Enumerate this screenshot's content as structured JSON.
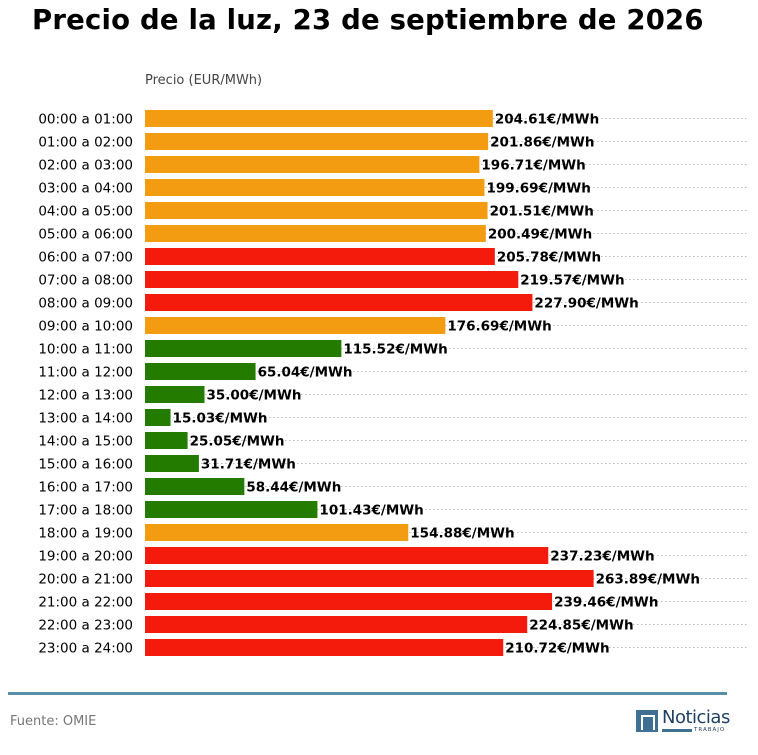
{
  "title": "Precio de la luz, 23 de septiembre de 2026",
  "unit_label": "Precio (EUR/MWh)",
  "source": "Fuente: OMIE",
  "logo": {
    "word": "Noticias",
    "sub": "TRABAJO"
  },
  "colors": {
    "high": "#f41a0c",
    "medium": "#f39c12",
    "low": "#237b00",
    "gridline": "#bbbbbb",
    "footer_rule": "#5a8ea6"
  },
  "value_suffix": "€/MWh",
  "chart_data": {
    "type": "bar",
    "orientation": "horizontal",
    "title": "Precio de la luz, 23 de septiembre de 2026",
    "xlabel": "Precio (EUR/MWh)",
    "ylabel": "",
    "xlim": [
      0,
      270
    ],
    "grid": "dotted horizontal guide lines",
    "categories": [
      "00:00 a 01:00",
      "01:00 a 02:00",
      "02:00 a 03:00",
      "03:00 a 04:00",
      "04:00 a 05:00",
      "05:00 a 06:00",
      "06:00 a 07:00",
      "07:00 a 08:00",
      "08:00 a 09:00",
      "09:00 a 10:00",
      "10:00 a 11:00",
      "11:00 a 12:00",
      "12:00 a 13:00",
      "13:00 a 14:00",
      "14:00 a 15:00",
      "15:00 a 16:00",
      "16:00 a 17:00",
      "17:00 a 18:00",
      "18:00 a 19:00",
      "19:00 a 20:00",
      "20:00 a 21:00",
      "21:00 a 22:00",
      "22:00 a 23:00",
      "23:00 a 24:00"
    ],
    "values": [
      204.61,
      201.86,
      196.71,
      199.69,
      201.51,
      200.49,
      205.78,
      219.57,
      227.9,
      176.69,
      115.52,
      65.04,
      35.0,
      15.03,
      25.05,
      31.71,
      58.44,
      101.43,
      154.88,
      237.23,
      263.89,
      239.46,
      224.85,
      210.72
    ],
    "data_labels": [
      "204.61€/MWh",
      "201.86€/MWh",
      "196.71€/MWh",
      "199.69€/MWh",
      "201.51€/MWh",
      "200.49€/MWh",
      "205.78€/MWh",
      "219.57€/MWh",
      "227.90€/MWh",
      "176.69€/MWh",
      "115.52€/MWh",
      "65.04€/MWh",
      "35.00€/MWh",
      "15.03€/MWh",
      "25.05€/MWh",
      "31.71€/MWh",
      "58.44€/MWh",
      "101.43€/MWh",
      "154.88€/MWh",
      "237.23€/MWh",
      "263.89€/MWh",
      "239.46€/MWh",
      "224.85€/MWh",
      "210.72€/MWh"
    ],
    "levels": [
      "medium",
      "medium",
      "medium",
      "medium",
      "medium",
      "medium",
      "high",
      "high",
      "high",
      "medium",
      "low",
      "low",
      "low",
      "low",
      "low",
      "low",
      "low",
      "low",
      "medium",
      "high",
      "high",
      "high",
      "high",
      "high"
    ]
  }
}
